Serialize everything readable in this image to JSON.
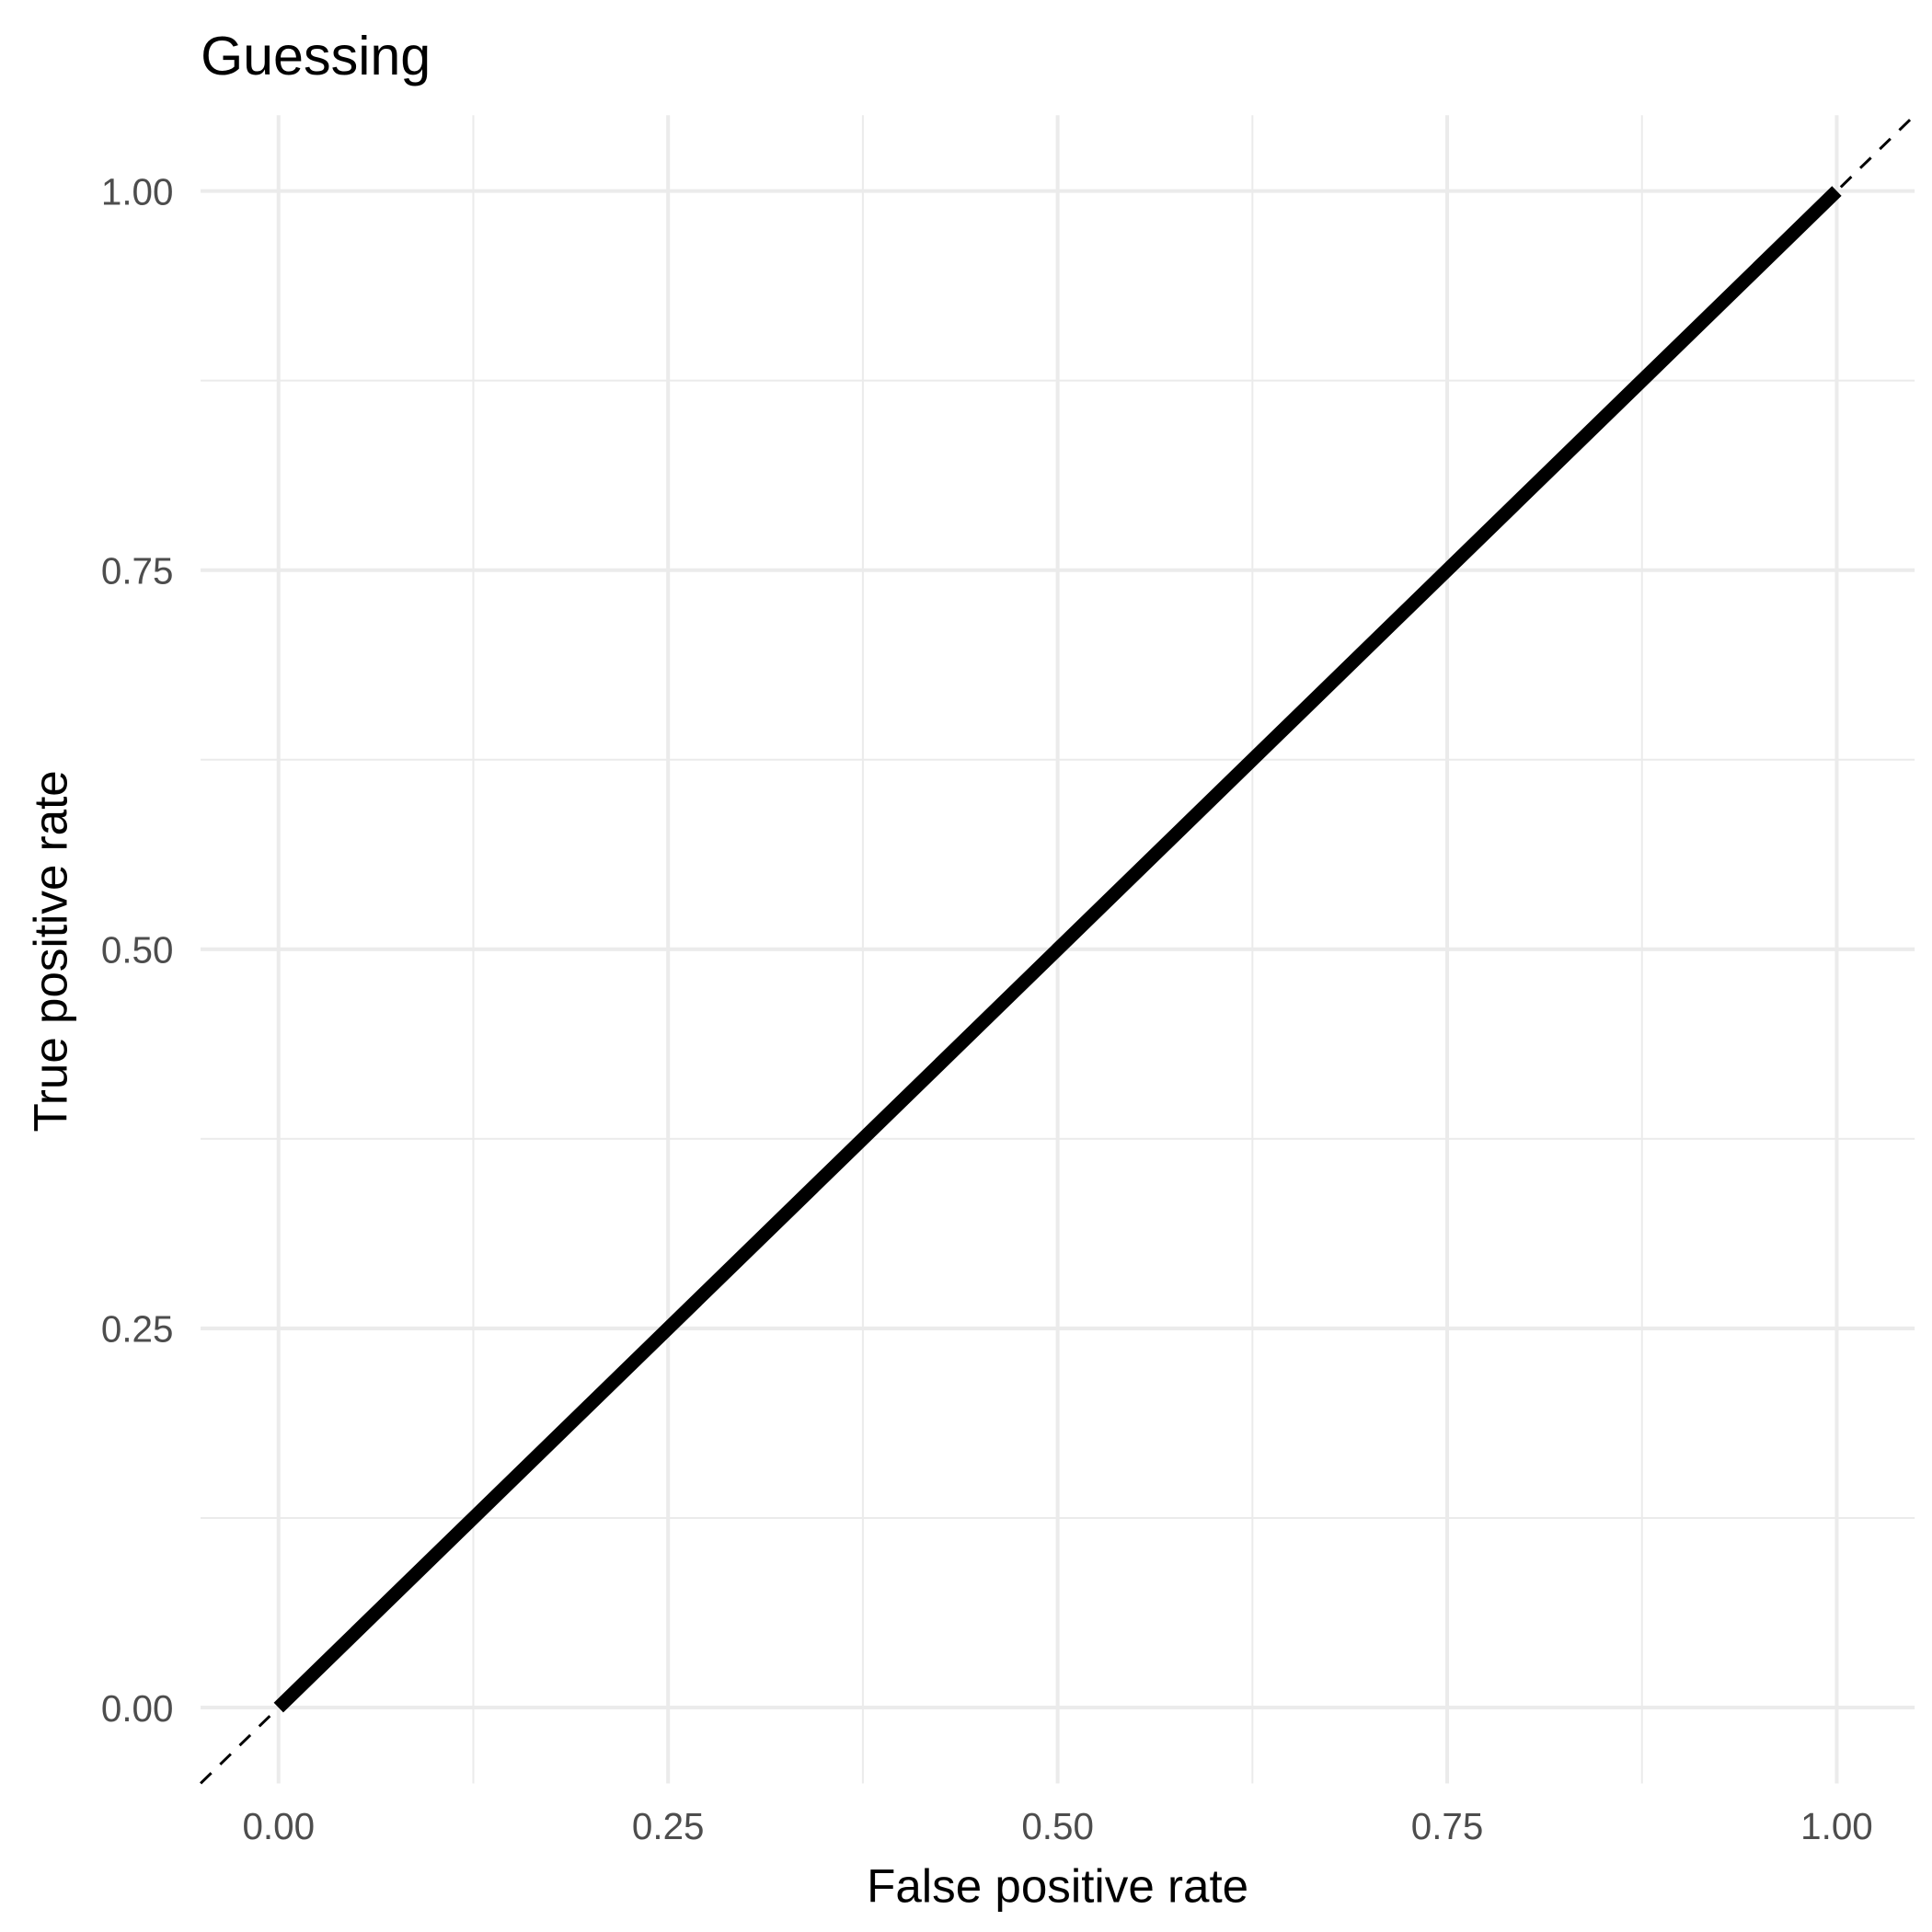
{
  "chart_data": {
    "type": "line",
    "title": "Guessing",
    "xlabel": "False positive rate",
    "ylabel": "True positive rate",
    "xlim": [
      -0.05,
      1.05
    ],
    "ylim": [
      -0.05,
      1.05
    ],
    "x_ticks": [
      "0.00",
      "0.25",
      "0.50",
      "0.75",
      "1.00"
    ],
    "y_ticks": [
      "0.00",
      "0.25",
      "0.50",
      "0.75",
      "1.00"
    ],
    "grid": true,
    "series": [
      {
        "x": [
          0,
          1
        ],
        "y": [
          0,
          1
        ],
        "color": "#000000",
        "style": "solid"
      }
    ],
    "reference_line": {
      "slope": 1,
      "intercept": 0,
      "style": "dashed",
      "color": "#000000"
    }
  }
}
